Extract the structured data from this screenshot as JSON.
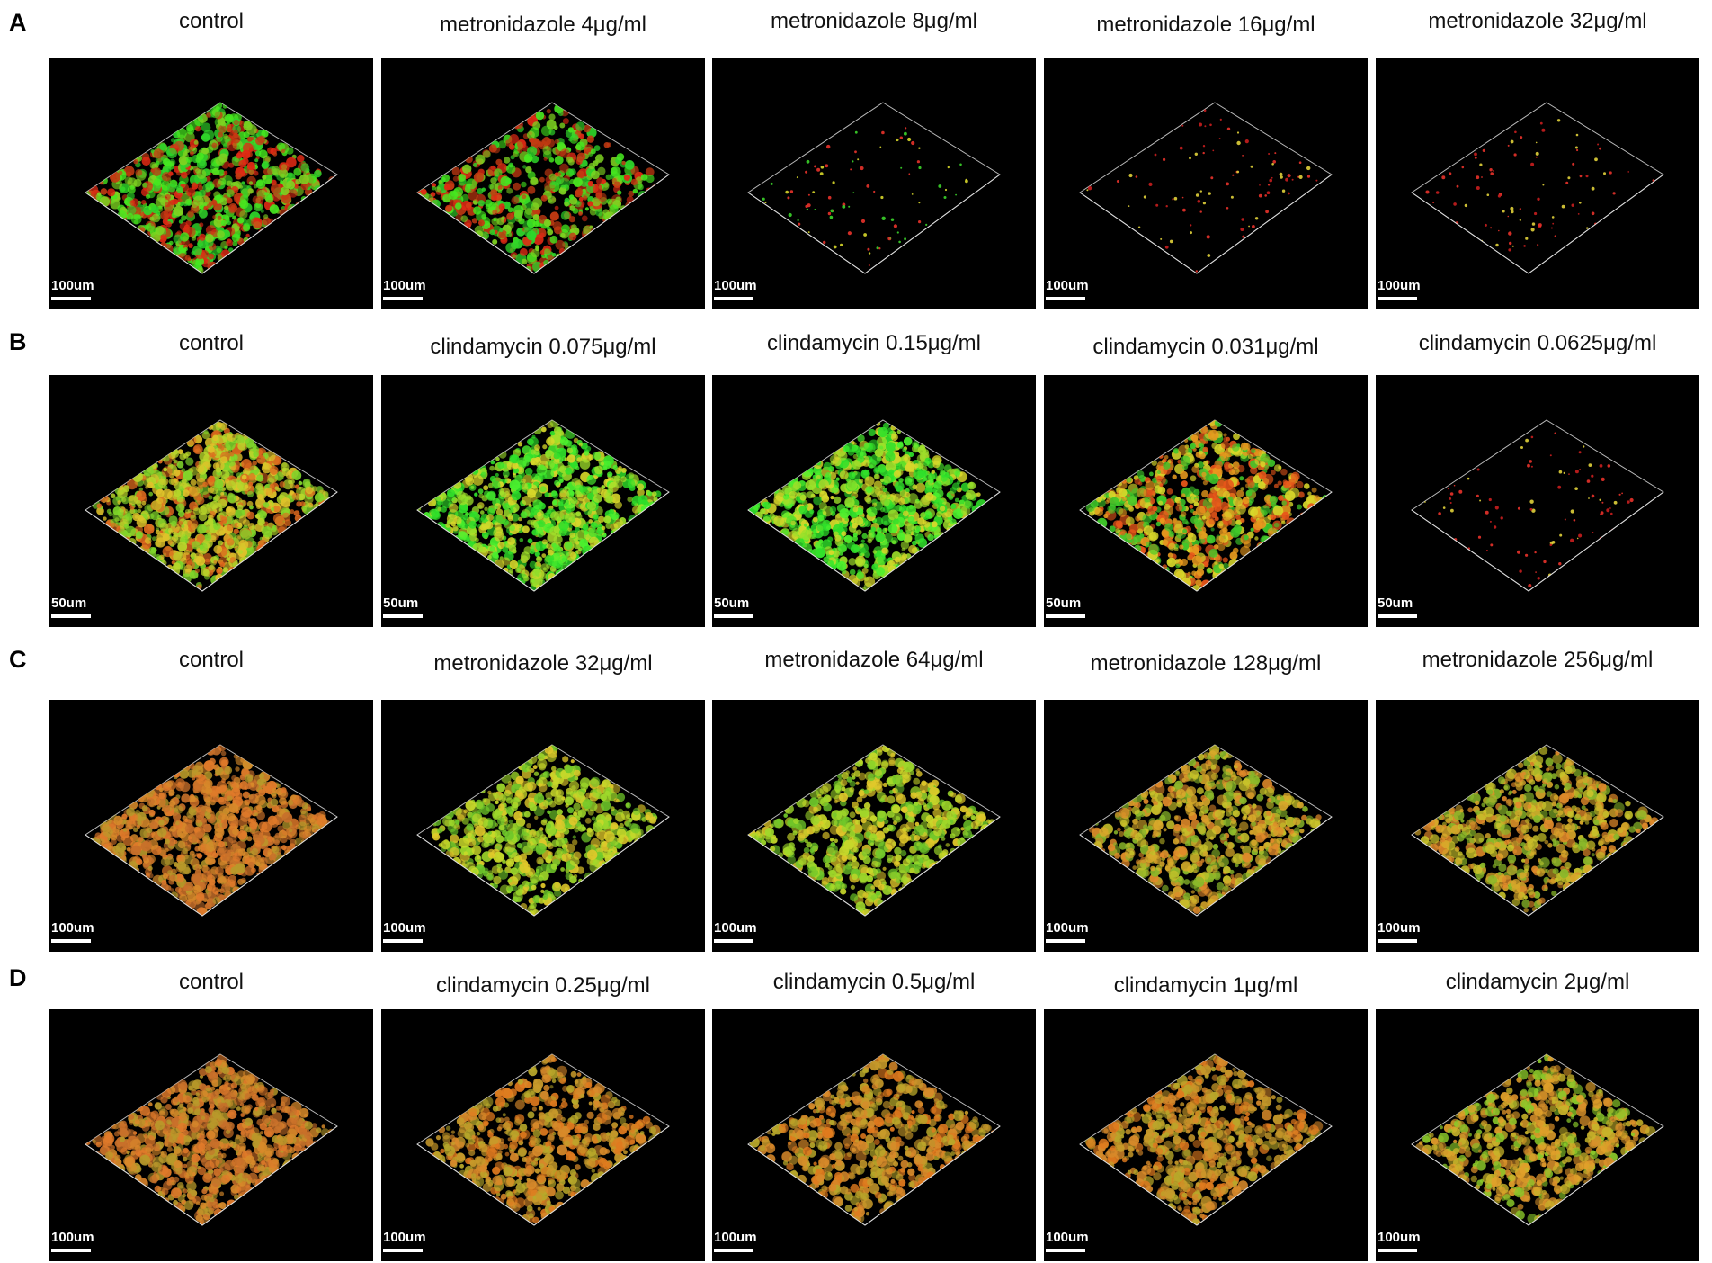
{
  "figure": {
    "rows": [
      {
        "letter": "A",
        "panels": [
          {
            "label": "control",
            "scale": "100um",
            "palette": "ag",
            "density": 0.85
          },
          {
            "label": "metronidazole 4μg/ml",
            "scale": "100um",
            "palette": "ag",
            "density": 0.62
          },
          {
            "label": "metronidazole 8μg/ml",
            "scale": "100um",
            "palette": "sparse-ag",
            "density": 0.1
          },
          {
            "label": "metronidazole 16μg/ml",
            "scale": "100um",
            "palette": "sparse-r",
            "density": 0.02
          },
          {
            "label": "metronidazole 32μg/ml",
            "scale": "100um",
            "palette": "sparse-r",
            "density": 0.02
          }
        ]
      },
      {
        "letter": "B",
        "panels": [
          {
            "label": "control",
            "scale": "50um",
            "palette": "b-yg",
            "density": 0.96
          },
          {
            "label": "clindamycin 0.075μg/ml",
            "scale": "50um",
            "palette": "b-g",
            "density": 0.9
          },
          {
            "label": "clindamycin 0.15μg/ml",
            "scale": "50um",
            "palette": "b-g",
            "density": 0.9
          },
          {
            "label": "clindamycin 0.031μg/ml",
            "scale": "50um",
            "palette": "b-ro",
            "density": 0.78
          },
          {
            "label": "clindamycin 0.0625μg/ml",
            "scale": "50um",
            "palette": "sparse-r",
            "density": 0.03
          }
        ]
      },
      {
        "letter": "C",
        "panels": [
          {
            "label": "control",
            "scale": "100um",
            "palette": "c-o",
            "density": 0.96
          },
          {
            "label": "metronidazole 32μg/ml",
            "scale": "100um",
            "palette": "c-gy",
            "density": 0.74
          },
          {
            "label": "metronidazole 64μg/ml",
            "scale": "100um",
            "palette": "c-gy",
            "density": 0.7
          },
          {
            "label": "metronidazole 128μg/ml",
            "scale": "100um",
            "palette": "c-yo",
            "density": 0.7
          },
          {
            "label": "metronidazole 256μg/ml",
            "scale": "100um",
            "palette": "c-yo",
            "density": 0.68
          }
        ]
      },
      {
        "letter": "D",
        "panels": [
          {
            "label": "control",
            "scale": "100um",
            "palette": "c-o",
            "density": 0.92
          },
          {
            "label": "clindamycin 0.25μg/ml",
            "scale": "100um",
            "palette": "d-o",
            "density": 0.7
          },
          {
            "label": "clindamycin  0.5μg/ml",
            "scale": "100um",
            "palette": "d-o",
            "density": 0.7
          },
          {
            "label": "clindamycin   1μg/ml",
            "scale": "100um",
            "palette": "d-o",
            "density": 0.72
          },
          {
            "label": "clindamycin   2μg/ml",
            "scale": "100um",
            "palette": "d-yo",
            "density": 0.7
          }
        ]
      }
    ],
    "palettes": {
      "ag": [
        "#2fd62a",
        "#46e81f",
        "#e02a14",
        "#c43a12",
        "#7ed321"
      ],
      "sparse-ag": [
        "#3bd42a",
        "#e8322a",
        "#d6d62a"
      ],
      "sparse-r": [
        "#e8322a",
        "#c81e1e",
        "#e0d03a"
      ],
      "b-yg": [
        "#b8d62a",
        "#e0c22a",
        "#7fd62a",
        "#e06a1e"
      ],
      "b-g": [
        "#2fe02a",
        "#4af02e",
        "#9ee02a",
        "#d8d82a"
      ],
      "b-ro": [
        "#e8561a",
        "#e89a1e",
        "#d8d82a",
        "#3fc82a"
      ],
      "c-o": [
        "#d88a2a",
        "#c8702a",
        "#b89a2a",
        "#e07a2a"
      ],
      "c-gy": [
        "#9ed82a",
        "#c8d82a",
        "#6fc82a",
        "#e0c82a"
      ],
      "c-yo": [
        "#d8a82a",
        "#c8c22a",
        "#e08a2a",
        "#8ab82a"
      ],
      "d-o": [
        "#d88a2a",
        "#e07a1e",
        "#c89a2a",
        "#b8a82a"
      ],
      "d-yo": [
        "#c8b42a",
        "#d8902a",
        "#8ac82a",
        "#e0a02a"
      ]
    }
  }
}
